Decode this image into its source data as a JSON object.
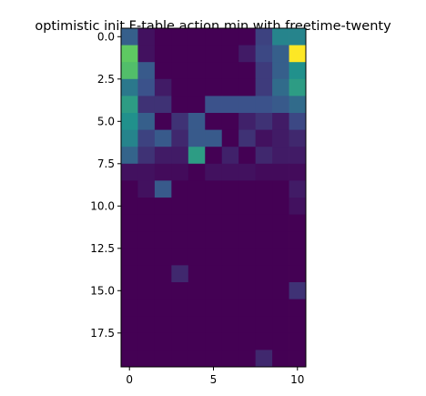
{
  "chart_data": {
    "type": "heatmap",
    "title": "optimistic init F-table action min with freetime-twenty",
    "colormap": "viridis",
    "value_range": [
      0,
      1
    ],
    "rows": 20,
    "cols": 11,
    "xticks": [
      0,
      5,
      10
    ],
    "xtick_labels": [
      "0",
      "5",
      "10"
    ],
    "yticks": [
      0,
      2.5,
      5,
      7.5,
      10,
      12.5,
      15,
      17.5
    ],
    "ytick_labels": [
      "0.0",
      "2.5",
      "5.0",
      "7.5",
      "10.0",
      "12.5",
      "15.0",
      "17.5"
    ],
    "values": [
      [
        0.3,
        0.05,
        0.0,
        0.0,
        0.0,
        0.0,
        0.0,
        0.0,
        0.2,
        0.45,
        0.45
      ],
      [
        0.75,
        0.05,
        0.0,
        0.0,
        0.0,
        0.0,
        0.0,
        0.08,
        0.22,
        0.3,
        1.0
      ],
      [
        0.7,
        0.28,
        0.0,
        0.0,
        0.0,
        0.0,
        0.0,
        0.0,
        0.18,
        0.3,
        0.5
      ],
      [
        0.4,
        0.25,
        0.08,
        0.0,
        0.0,
        0.0,
        0.0,
        0.0,
        0.18,
        0.35,
        0.55
      ],
      [
        0.55,
        0.15,
        0.15,
        0.0,
        0.0,
        0.25,
        0.25,
        0.25,
        0.25,
        0.28,
        0.35
      ],
      [
        0.5,
        0.3,
        0.0,
        0.15,
        0.28,
        0.0,
        0.0,
        0.1,
        0.15,
        0.08,
        0.22
      ],
      [
        0.45,
        0.2,
        0.28,
        0.12,
        0.28,
        0.28,
        0.0,
        0.15,
        0.05,
        0.08,
        0.12
      ],
      [
        0.32,
        0.15,
        0.08,
        0.08,
        0.55,
        0.0,
        0.1,
        0.0,
        0.12,
        0.08,
        0.08
      ],
      [
        0.05,
        0.05,
        0.03,
        0.03,
        0.0,
        0.05,
        0.05,
        0.05,
        0.03,
        0.03,
        0.03
      ],
      [
        0.0,
        0.05,
        0.28,
        0.0,
        0.0,
        0.0,
        0.0,
        0.0,
        0.0,
        0.0,
        0.08
      ],
      [
        0.0,
        0.0,
        0.0,
        0.0,
        0.0,
        0.0,
        0.0,
        0.0,
        0.0,
        0.0,
        0.05
      ],
      [
        0.0,
        0.0,
        0.0,
        0.0,
        0.0,
        0.0,
        0.0,
        0.0,
        0.0,
        0.0,
        0.0
      ],
      [
        0.0,
        0.0,
        0.0,
        0.0,
        0.0,
        0.0,
        0.0,
        0.0,
        0.0,
        0.0,
        0.0
      ],
      [
        0.0,
        0.0,
        0.0,
        0.0,
        0.0,
        0.0,
        0.0,
        0.0,
        0.0,
        0.0,
        0.0
      ],
      [
        0.0,
        0.0,
        0.0,
        0.12,
        0.0,
        0.0,
        0.0,
        0.0,
        0.0,
        0.0,
        0.0
      ],
      [
        0.0,
        0.0,
        0.0,
        0.0,
        0.0,
        0.0,
        0.0,
        0.0,
        0.0,
        0.0,
        0.15
      ],
      [
        0.0,
        0.0,
        0.0,
        0.0,
        0.0,
        0.0,
        0.0,
        0.0,
        0.0,
        0.0,
        0.0
      ],
      [
        0.0,
        0.0,
        0.0,
        0.0,
        0.0,
        0.0,
        0.0,
        0.0,
        0.0,
        0.0,
        0.0
      ],
      [
        0.0,
        0.0,
        0.0,
        0.0,
        0.0,
        0.0,
        0.0,
        0.0,
        0.0,
        0.0,
        0.0
      ],
      [
        0.0,
        0.0,
        0.0,
        0.0,
        0.0,
        0.0,
        0.0,
        0.0,
        0.12,
        0.0,
        0.0
      ]
    ]
  }
}
